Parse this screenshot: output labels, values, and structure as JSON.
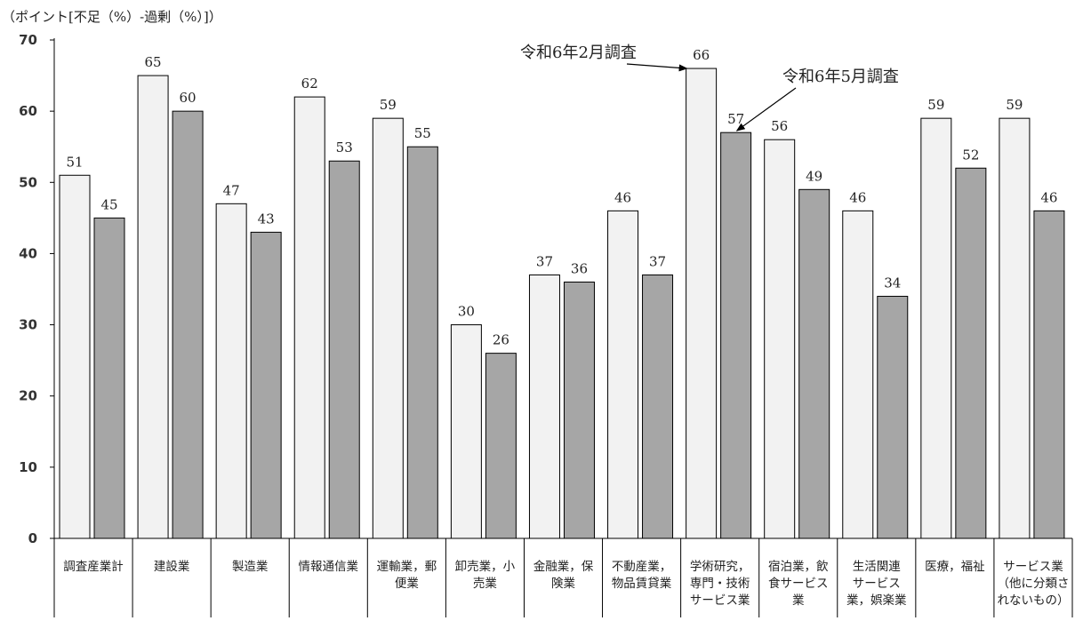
{
  "chart_data": {
    "type": "bar",
    "unit_label": "（ポイント[不足（%）-過剰（%）]）",
    "ylim": [
      0,
      70
    ],
    "yticks": [
      0,
      10,
      20,
      30,
      40,
      50,
      60,
      70
    ],
    "grid": false,
    "categories": [
      [
        "調査産業計"
      ],
      [
        "建設業"
      ],
      [
        "製造業"
      ],
      [
        "情報通信業"
      ],
      [
        "運輸業，郵",
        "便業"
      ],
      [
        "卸売業，小",
        "売業"
      ],
      [
        "金融業，保",
        "険業"
      ],
      [
        "不動産業，",
        "物品賃貸業"
      ],
      [
        "学術研究，",
        "専門・技術",
        "サービス業"
      ],
      [
        "宿泊業，飲",
        "食サービス",
        "業"
      ],
      [
        "生活関連",
        "サービス",
        "業，娯楽業"
      ],
      [
        "医療，福祉"
      ],
      [
        "サービス業",
        "（他に分類さ",
        "れないもの）"
      ]
    ],
    "series": [
      {
        "name": "令和6年2月調査",
        "color": "#f2f2f2",
        "values": [
          51,
          65,
          47,
          62,
          59,
          30,
          37,
          46,
          66,
          56,
          46,
          59,
          59
        ]
      },
      {
        "name": "令和6年5月調査",
        "color": "#a6a6a6",
        "values": [
          45,
          60,
          43,
          53,
          55,
          26,
          36,
          37,
          57,
          49,
          34,
          52,
          46
        ]
      }
    ],
    "annotations": [
      {
        "text": "令和6年2月調査",
        "series_index": 0,
        "category_index": 8
      },
      {
        "text": "令和6年5月調査",
        "series_index": 1,
        "category_index": 8
      }
    ]
  }
}
